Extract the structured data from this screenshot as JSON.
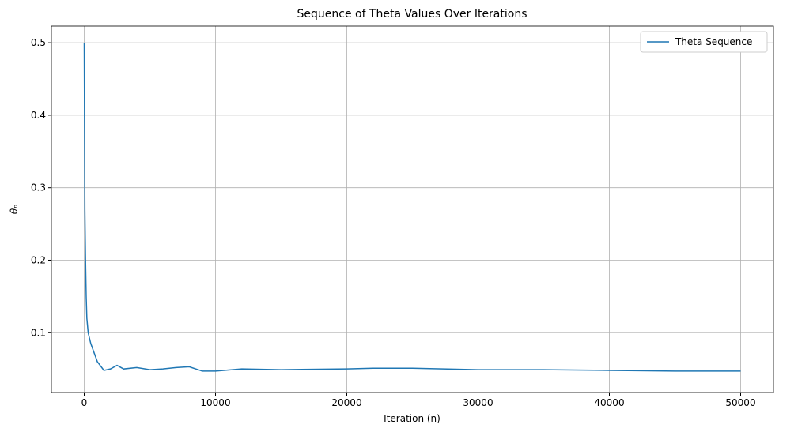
{
  "chart_data": {
    "type": "line",
    "title": "Sequence of Theta Values Over Iterations",
    "xlabel": "Iteration (n)",
    "ylabel": "θₙ",
    "x": [
      0,
      50,
      100,
      150,
      200,
      300,
      500,
      800,
      1000,
      1500,
      2000,
      2500,
      3000,
      4000,
      5000,
      6000,
      7000,
      8000,
      9000,
      10000,
      12000,
      15000,
      20000,
      22000,
      25000,
      30000,
      35000,
      40000,
      45000,
      50000
    ],
    "series": [
      {
        "name": "Theta Sequence",
        "color": "#1f77b4",
        "values": [
          0.5,
          0.27,
          0.2,
          0.15,
          0.12,
          0.1,
          0.085,
          0.07,
          0.06,
          0.048,
          0.05,
          0.055,
          0.05,
          0.052,
          0.049,
          0.05,
          0.052,
          0.053,
          0.047,
          0.047,
          0.05,
          0.049,
          0.05,
          0.051,
          0.051,
          0.049,
          0.049,
          0.048,
          0.047,
          0.047
        ]
      }
    ],
    "xlim": [
      -2500,
      52500
    ],
    "ylim": [
      0.0175,
      0.523
    ],
    "xticks": [
      0,
      10000,
      20000,
      30000,
      40000,
      50000
    ],
    "yticks": [
      0.1,
      0.2,
      0.3,
      0.4,
      0.5
    ],
    "grid": true,
    "legend": "upper right"
  }
}
